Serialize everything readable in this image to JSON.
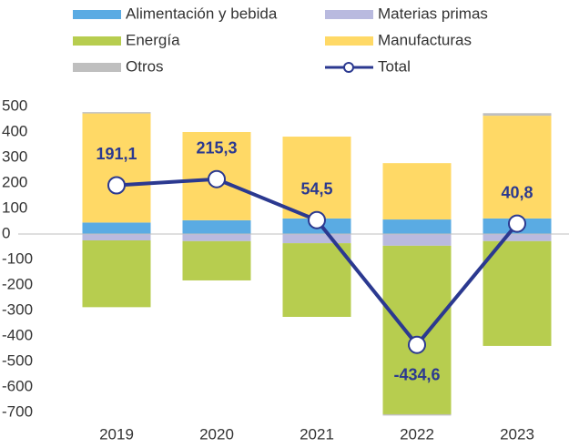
{
  "chart_data": {
    "type": "bar",
    "stacked": true,
    "categories": [
      "2019",
      "2020",
      "2021",
      "2022",
      "2023"
    ],
    "series": [
      {
        "name": "Alimentación y bebida",
        "color": "#5aabe3",
        "values": [
          45,
          54,
          61,
          57,
          61
        ]
      },
      {
        "name": "Materias primas",
        "color": "#b9badf",
        "values": [
          -25,
          -28,
          -36,
          -46,
          -28
        ]
      },
      {
        "name": "Energía",
        "color": "#b7cd4f",
        "values": [
          -262,
          -154,
          -289,
          -661,
          -411
        ]
      },
      {
        "name": "Manufacturas",
        "color": "#ffd966",
        "values": [
          428,
          346,
          321,
          221,
          403
        ]
      },
      {
        "name": "Otros",
        "color": "#bfbfbf",
        "values": [
          5,
          0,
          0,
          -5,
          10
        ]
      },
      {
        "name": "Total",
        "type": "line",
        "color": "#2b3990",
        "values": [
          191.1,
          215.3,
          54.5,
          -434.6,
          40.8
        ],
        "value_labels": [
          "191,1",
          "215,3",
          "54,5",
          "-434,6",
          "40,8"
        ]
      }
    ],
    "ylim": [
      -700,
      500
    ],
    "yticks": [
      -700,
      -600,
      -500,
      -400,
      -300,
      -200,
      -100,
      0,
      100,
      200,
      300,
      400,
      500
    ]
  }
}
